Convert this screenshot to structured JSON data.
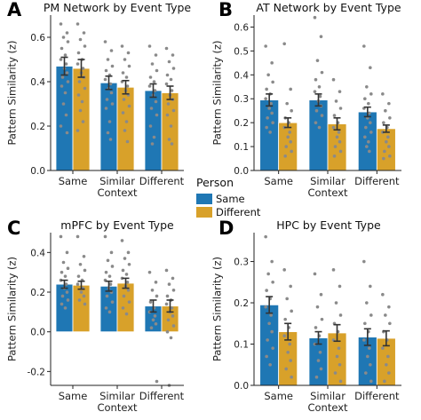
{
  "legend": {
    "title": "Person",
    "entries": [
      {
        "name": "Same",
        "color": "#1f77b4"
      },
      {
        "name": "Different",
        "color": "#d8a12a"
      }
    ]
  },
  "chart_data": [
    {
      "panel_label": "A",
      "type": "bar",
      "title": "PM Network by Event Type",
      "ylabel": "Pattern Similarity (z)",
      "categories": [
        "Same",
        "Similar\nContext",
        "Different"
      ],
      "ylim": [
        0,
        0.7
      ],
      "yticks": [
        0.0,
        0.2,
        0.4,
        0.6
      ],
      "ytick_labels": [
        "0.0",
        "0.2",
        "0.4",
        "0.6"
      ],
      "series": [
        {
          "name": "Same",
          "values": [
            0.47,
            0.395,
            0.36
          ],
          "errors": [
            0.04,
            0.03,
            0.03
          ],
          "points": [
            [
              0.66,
              0.62,
              0.6,
              0.58,
              0.55,
              0.52,
              0.5,
              0.48,
              0.46,
              0.44,
              0.42,
              0.4,
              0.38,
              0.35,
              0.3,
              0.25,
              0.2,
              0.17
            ],
            [
              0.58,
              0.54,
              0.5,
              0.47,
              0.45,
              0.43,
              0.41,
              0.39,
              0.37,
              0.35,
              0.32,
              0.3,
              0.28,
              0.22,
              0.17,
              0.14
            ],
            [
              0.56,
              0.52,
              0.48,
              0.45,
              0.42,
              0.4,
              0.38,
              0.36,
              0.34,
              0.31,
              0.28,
              0.25,
              0.2,
              0.15,
              0.12
            ]
          ]
        },
        {
          "name": "Different",
          "values": [
            0.46,
            0.375,
            0.35
          ],
          "errors": [
            0.04,
            0.03,
            0.03
          ],
          "points": [
            [
              0.66,
              0.62,
              0.59,
              0.56,
              0.53,
              0.5,
              0.48,
              0.46,
              0.44,
              0.42,
              0.4,
              0.37,
              0.34,
              0.31,
              0.27,
              0.22,
              0.18
            ],
            [
              0.56,
              0.53,
              0.5,
              0.47,
              0.44,
              0.42,
              0.4,
              0.38,
              0.36,
              0.34,
              0.32,
              0.29,
              0.26,
              0.22,
              0.18,
              0.13
            ],
            [
              0.55,
              0.52,
              0.49,
              0.46,
              0.43,
              0.41,
              0.39,
              0.36,
              0.34,
              0.32,
              0.3,
              0.27,
              0.25,
              0.2,
              0.14,
              0.12
            ]
          ]
        }
      ]
    },
    {
      "panel_label": "B",
      "type": "bar",
      "title": "AT Network by Event Type",
      "ylabel": "Pattern Similarity (z)",
      "categories": [
        "Same",
        "Similar\nContext",
        "Different"
      ],
      "ylim": [
        0,
        0.65
      ],
      "yticks": [
        0.0,
        0.1,
        0.2,
        0.3,
        0.4,
        0.5,
        0.6
      ],
      "ytick_labels": [
        "0.0",
        "0.1",
        "0.2",
        "0.3",
        "0.4",
        "0.5",
        "0.6"
      ],
      "series": [
        {
          "name": "Same",
          "values": [
            0.295,
            0.295,
            0.245
          ],
          "errors": [
            0.025,
            0.025,
            0.02
          ],
          "points": [
            [
              0.52,
              0.45,
              0.4,
              0.37,
              0.34,
              0.32,
              0.3,
              0.28,
              0.26,
              0.24,
              0.22,
              0.2,
              0.18,
              0.16
            ],
            [
              0.64,
              0.56,
              0.46,
              0.41,
              0.38,
              0.35,
              0.33,
              0.31,
              0.29,
              0.27,
              0.25,
              0.23,
              0.2,
              0.18
            ],
            [
              0.52,
              0.43,
              0.35,
              0.32,
              0.3,
              0.28,
              0.26,
              0.24,
              0.22,
              0.2,
              0.18,
              0.16,
              0.14,
              0.12,
              0.1,
              0.08
            ]
          ]
        },
        {
          "name": "Different",
          "values": [
            0.2,
            0.195,
            0.175
          ],
          "errors": [
            0.02,
            0.025,
            0.015
          ],
          "points": [
            [
              0.53,
              0.34,
              0.28,
              0.25,
              0.22,
              0.2,
              0.18,
              0.16,
              0.14,
              0.12,
              0.1,
              0.08,
              0.06
            ],
            [
              0.38,
              0.33,
              0.29,
              0.26,
              0.23,
              0.2,
              0.18,
              0.16,
              0.14,
              0.12,
              0.1,
              0.08,
              0.06
            ],
            [
              0.32,
              0.28,
              0.25,
              0.22,
              0.2,
              0.18,
              0.16,
              0.14,
              0.12,
              0.1,
              0.08,
              0.06,
              0.05
            ]
          ]
        }
      ]
    },
    {
      "panel_label": "C",
      "type": "bar",
      "title": "mPFC by Event Type",
      "ylabel": "Pattern Similarity (z)",
      "categories": [
        "Same",
        "Similar\nContext",
        "Different"
      ],
      "ylim": [
        -0.27,
        0.5
      ],
      "yticks": [
        -0.2,
        0.0,
        0.2,
        0.4
      ],
      "ytick_labels": [
        "-0.2",
        "0.0",
        "0.2",
        "0.4"
      ],
      "series": [
        {
          "name": "Same",
          "values": [
            0.24,
            0.23,
            0.13
          ],
          "errors": [
            0.02,
            0.025,
            0.03
          ],
          "points": [
            [
              0.48,
              0.4,
              0.35,
              0.32,
              0.3,
              0.28,
              0.26,
              0.24,
              0.22,
              0.2,
              0.18,
              0.16,
              0.14,
              0.12
            ],
            [
              0.48,
              0.4,
              0.36,
              0.33,
              0.3,
              0.28,
              0.26,
              0.24,
              0.22,
              0.2,
              0.18,
              0.15,
              0.12,
              0.1
            ],
            [
              0.3,
              0.25,
              0.21,
              0.18,
              0.15,
              0.12,
              0.1,
              0.08,
              0.06,
              0.04,
              0.02,
              -0.25
            ]
          ]
        },
        {
          "name": "Different",
          "values": [
            0.235,
            0.245,
            0.13
          ],
          "errors": [
            0.02,
            0.025,
            0.03
          ],
          "points": [
            [
              0.48,
              0.38,
              0.34,
              0.31,
              0.28,
              0.26,
              0.24,
              0.22,
              0.2,
              0.18,
              0.16,
              0.14
            ],
            [
              0.46,
              0.4,
              0.37,
              0.34,
              0.31,
              0.29,
              0.27,
              0.25,
              0.23,
              0.21,
              0.18,
              0.15,
              0.12,
              0.09
            ],
            [
              0.31,
              0.27,
              0.24,
              0.21,
              0.18,
              0.16,
              0.14,
              0.12,
              0.1,
              0.08,
              0.06,
              0.03,
              0.0,
              -0.03,
              -0.27
            ]
          ]
        }
      ]
    },
    {
      "panel_label": "D",
      "type": "bar",
      "title": "HPC by Event Type",
      "ylabel": "Pattern Similarity (z)",
      "categories": [
        "Same",
        "Similar\nContext",
        "Different"
      ],
      "ylim": [
        0,
        0.37
      ],
      "yticks": [
        0.0,
        0.1,
        0.2,
        0.3
      ],
      "ytick_labels": [
        "0.0",
        "0.1",
        "0.2",
        "0.3"
      ],
      "series": [
        {
          "name": "Same",
          "values": [
            0.195,
            0.115,
            0.117
          ],
          "errors": [
            0.02,
            0.015,
            0.02
          ],
          "points": [
            [
              0.36,
              0.3,
              0.27,
              0.25,
              0.23,
              0.21,
              0.19,
              0.17,
              0.15,
              0.13,
              0.11,
              0.09,
              0.07,
              0.05
            ],
            [
              0.27,
              0.22,
              0.19,
              0.16,
              0.14,
              0.12,
              0.1,
              0.08,
              0.06,
              0.04,
              0.02
            ],
            [
              0.3,
              0.24,
              0.2,
              0.17,
              0.15,
              0.13,
              0.11,
              0.09,
              0.07,
              0.05,
              0.03,
              0.01
            ]
          ]
        },
        {
          "name": "Different",
          "values": [
            0.13,
            0.127,
            0.114
          ],
          "errors": [
            0.02,
            0.02,
            0.018
          ],
          "points": [
            [
              0.28,
              0.24,
              0.21,
              0.18,
              0.16,
              0.14,
              0.12,
              0.1,
              0.08,
              0.06,
              0.04,
              0.02
            ],
            [
              0.28,
              0.24,
              0.2,
              0.17,
              0.15,
              0.13,
              0.11,
              0.09,
              0.07,
              0.05,
              0.03,
              0.01
            ],
            [
              0.22,
              0.19,
              0.17,
              0.15,
              0.13,
              0.11,
              0.09,
              0.07,
              0.05,
              0.03,
              0.01
            ]
          ]
        }
      ]
    }
  ]
}
